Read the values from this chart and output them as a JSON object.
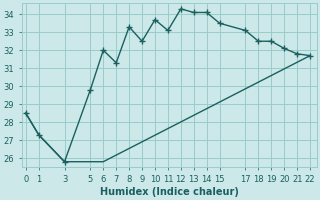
{
  "xlabel": "Humidex (Indice chaleur)",
  "background_color": "#cce8e8",
  "grid_color": "#99cccc",
  "line_color": "#1a6060",
  "upper_x": [
    0,
    1,
    3,
    5,
    6,
    7,
    8,
    9,
    10,
    11,
    12,
    13,
    14,
    15,
    17,
    18,
    19,
    20,
    21,
    22
  ],
  "upper_y": [
    28.5,
    27.3,
    25.8,
    29.8,
    32.0,
    31.3,
    33.3,
    32.5,
    33.7,
    33.1,
    34.3,
    34.1,
    34.1,
    33.5,
    33.1,
    32.5,
    32.5,
    32.1,
    31.8,
    31.7
  ],
  "lower_x": [
    0,
    1,
    3,
    5,
    6,
    22
  ],
  "lower_y": [
    28.5,
    27.3,
    25.8,
    25.8,
    25.8,
    31.7
  ],
  "ylim": [
    25.5,
    34.6
  ],
  "xlim": [
    -0.3,
    22.5
  ],
  "yticks": [
    26,
    27,
    28,
    29,
    30,
    31,
    32,
    33,
    34
  ],
  "xticks": [
    0,
    1,
    3,
    5,
    6,
    7,
    8,
    9,
    10,
    11,
    12,
    13,
    14,
    15,
    17,
    18,
    19,
    20,
    21,
    22
  ],
  "xtick_labels": [
    "0",
    "1",
    "3",
    "5",
    "6",
    "7",
    "8",
    "9",
    "10",
    "11",
    "12",
    "13",
    "14",
    "15",
    "17",
    "18",
    "19",
    "20",
    "21",
    "22"
  ],
  "marker": "+",
  "marker_size": 4,
  "line_width": 1.0,
  "xlabel_fontsize": 7,
  "tick_fontsize": 6
}
